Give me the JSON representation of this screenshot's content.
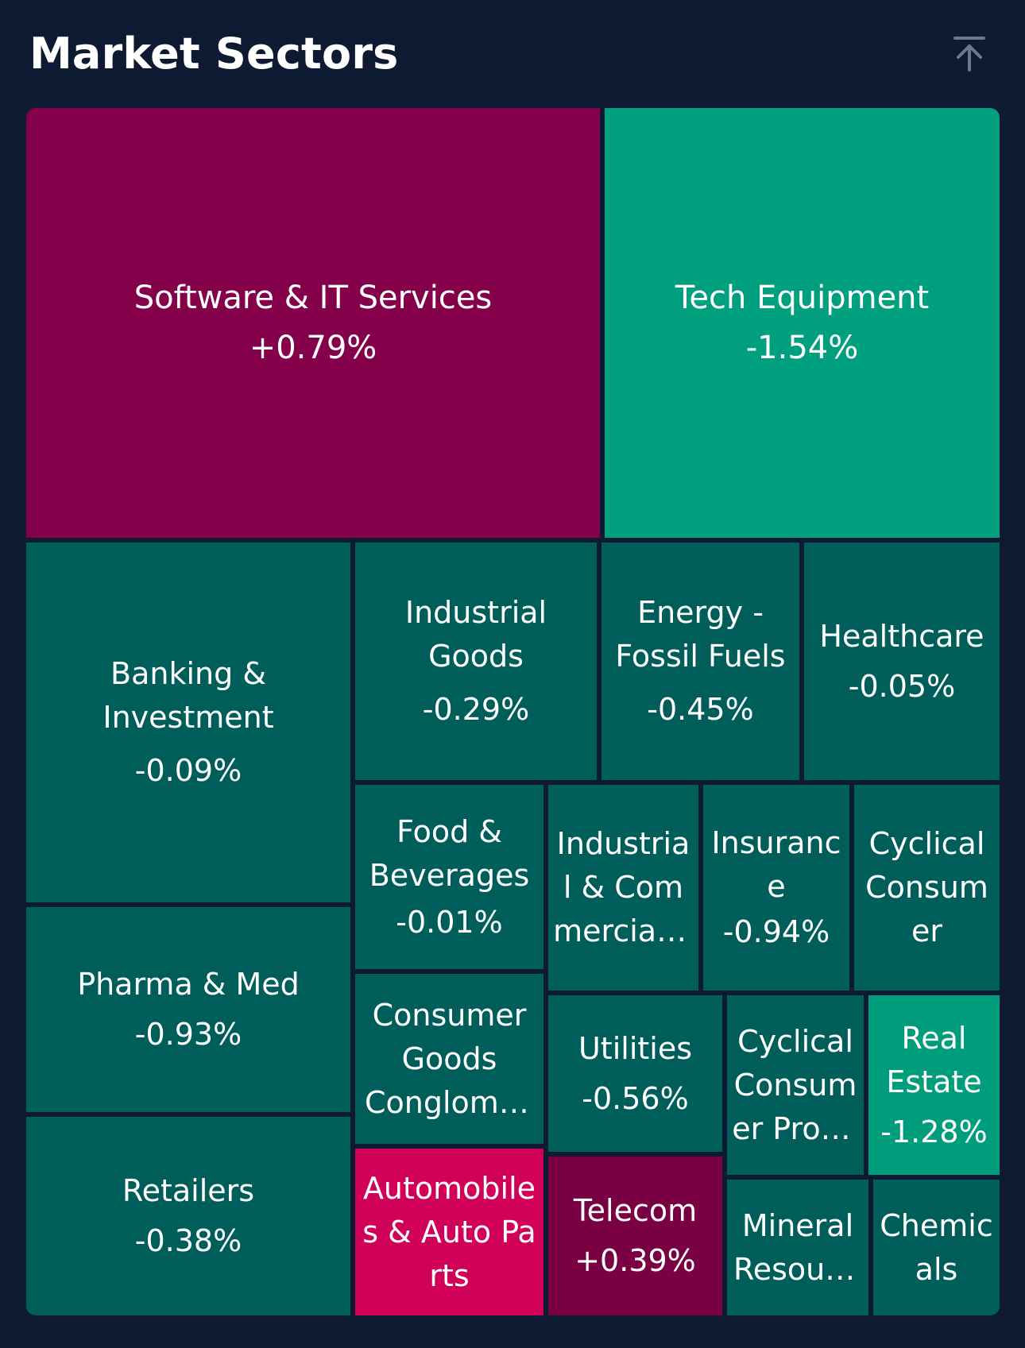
{
  "header": {
    "title": "Market Sectors",
    "scroll_top_icon": "arrow-up-to-line-icon"
  },
  "colors": {
    "background": "#0e1a32",
    "strong_positive": "#85004a",
    "positive": "#7a0044",
    "very_strong_positive": "#d10058",
    "slight_negative": "#005e5a",
    "negative": "#006d62",
    "strong_negative": "#00a07f",
    "mid_negative": "#009d7d"
  },
  "sectors": [
    {
      "name": "Software & IT Services",
      "change": "+0.79%"
    },
    {
      "name": "Tech Equipment",
      "change": "-1.54%"
    },
    {
      "name": "Banking & Investment",
      "change": "-0.09%"
    },
    {
      "name": "Industrial Goods",
      "change": "-0.29%"
    },
    {
      "name": "Energy - Fossil Fuels",
      "change": "-0.45%"
    },
    {
      "name": "Healthcare",
      "change": "-0.05%"
    },
    {
      "name": "Food & Beverages",
      "change": "-0.01%"
    },
    {
      "name": "Industrial & Commercial Services",
      "change": ""
    },
    {
      "name": "Insurance",
      "change": "-0.94%"
    },
    {
      "name": "Cyclical Consumer",
      "change": ""
    },
    {
      "name": "Pharma & Med",
      "change": "-0.93%"
    },
    {
      "name": "Consumer Goods Conglomerates",
      "change": ""
    },
    {
      "name": "Utilities",
      "change": "-0.56%"
    },
    {
      "name": "Cyclical Consumer Products",
      "change": ""
    },
    {
      "name": "Real Estate",
      "change": "-1.28%"
    },
    {
      "name": "Retailers",
      "change": "-0.38%"
    },
    {
      "name": "Automobiles & Auto Parts",
      "change": ""
    },
    {
      "name": "Telecom",
      "change": "+0.39%"
    },
    {
      "name": "Mineral Resources",
      "change": ""
    },
    {
      "name": "Chemicals",
      "change": ""
    }
  ]
}
